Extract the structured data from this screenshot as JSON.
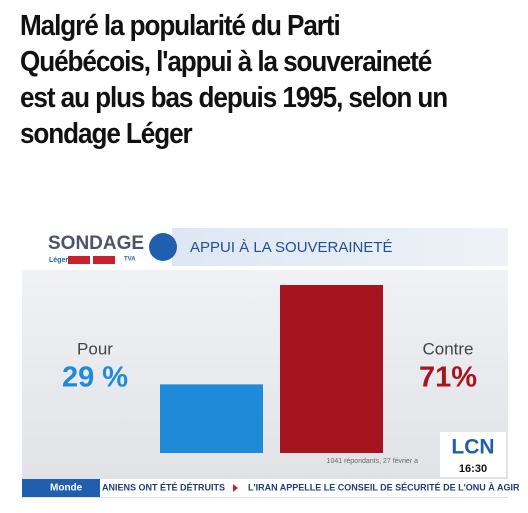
{
  "headline": "Malgré la popularité du Parti Québécois, l'appui à la souveraineté est au plus bas depuis 1995, selon un sondage Léger",
  "chart_data": {
    "type": "bar",
    "brand": "SONDAGE",
    "pollster": "Léger",
    "partner": "TVA",
    "title": "APPUI À LA SOUVERAINETÉ",
    "categories": [
      "Pour",
      "Contre"
    ],
    "values": [
      29,
      71
    ],
    "value_labels": [
      "29 %",
      "71%"
    ],
    "colors": [
      "#1f8ad8",
      "#a5141f"
    ],
    "source": "1041 répondants, 27 février a"
  },
  "broadcast": {
    "channel": "LCN",
    "time": "16:30",
    "section": "Monde",
    "ticker": [
      "ANIENS ONT ÉTÉ DÉTRUITS",
      "L'IRAN APPELLE LE CONSEIL DE SÉCURITÉ DE L'ONU À AGIR"
    ]
  }
}
